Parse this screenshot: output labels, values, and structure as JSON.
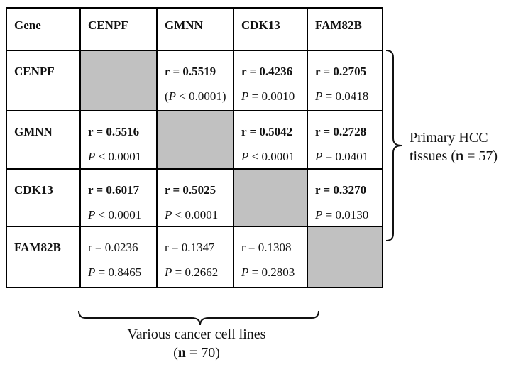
{
  "colors": {
    "diagonal_gray": "#c1c1c1",
    "border_black": "#000000",
    "background": "#ffffff",
    "text": "#111111"
  },
  "table": {
    "columns": [
      "Gene",
      "CENPF",
      "GMNN",
      "CDK13",
      "FAM82B"
    ],
    "rows": [
      {
        "gene": "CENPF",
        "cells": [
          {
            "type": "self"
          },
          {
            "type": "value",
            "bold": true,
            "r": "r = 0.5519",
            "p_pre": "(",
            "p_sym": "P",
            "p_post": " < 0.0001)"
          },
          {
            "type": "value",
            "bold": true,
            "r": "r = 0.4236",
            "p_pre": "",
            "p_sym": "P",
            "p_post": " = 0.0010"
          },
          {
            "type": "value",
            "bold": true,
            "r": "r = 0.2705",
            "p_pre": "",
            "p_sym": "P",
            "p_post": " = 0.0418"
          }
        ]
      },
      {
        "gene": "GMNN",
        "cells": [
          {
            "type": "value",
            "bold": true,
            "r": "r = 0.5516",
            "p_pre": "",
            "p_sym": "P",
            "p_post": " < 0.0001"
          },
          {
            "type": "self"
          },
          {
            "type": "value",
            "bold": true,
            "r": "r = 0.5042",
            "p_pre": "",
            "p_sym": "P",
            "p_post": " < 0.0001"
          },
          {
            "type": "value",
            "bold": true,
            "r": "r = 0.2728",
            "p_pre": "",
            "p_sym": "P",
            "p_post": " = 0.0401"
          }
        ]
      },
      {
        "gene": "CDK13",
        "cells": [
          {
            "type": "value",
            "bold": true,
            "r": "r = 0.6017",
            "p_pre": "",
            "p_sym": "P",
            "p_post": " < 0.0001"
          },
          {
            "type": "value",
            "bold": true,
            "r": "r = 0.5025",
            "p_pre": "",
            "p_sym": "P",
            "p_post": " < 0.0001"
          },
          {
            "type": "self"
          },
          {
            "type": "value",
            "bold": true,
            "r": "r = 0.3270",
            "p_pre": "",
            "p_sym": "P",
            "p_post": " = 0.0130"
          }
        ]
      },
      {
        "gene": "FAM82B",
        "cells": [
          {
            "type": "value",
            "bold": false,
            "r": "r = 0.0236",
            "p_pre": "",
            "p_sym": "P",
            "p_post": " = 0.8465"
          },
          {
            "type": "value",
            "bold": false,
            "r": "r = 0.1347",
            "p_pre": "",
            "p_sym": "P",
            "p_post": " = 0.2662"
          },
          {
            "type": "value",
            "bold": false,
            "r": "r = 0.1308",
            "p_pre": "",
            "p_sym": "P",
            "p_post": " = 0.2803"
          },
          {
            "type": "self"
          }
        ]
      }
    ]
  },
  "annotations": {
    "right": {
      "line1": "Primary HCC",
      "line2_pre": "tissues (",
      "line2_n": "n",
      "line2_post": " = 57)"
    },
    "bottom": {
      "line1": "Various cancer cell lines",
      "line2_pre": "(",
      "line2_n": "n",
      "line2_post": " = 70)"
    }
  }
}
